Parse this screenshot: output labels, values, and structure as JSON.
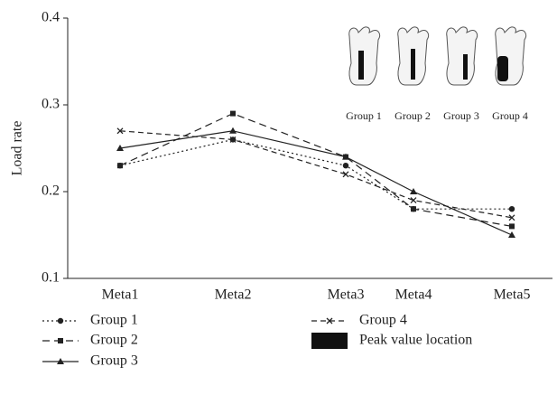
{
  "chart_data": {
    "type": "line",
    "y_label": "Load rate",
    "categories": [
      "Meta1",
      "Meta2",
      "Meta3",
      "Meta4",
      "Meta5"
    ],
    "ylim": [
      0.1,
      0.4
    ],
    "yticks": [
      0.1,
      0.2,
      0.3,
      0.4
    ],
    "series": [
      {
        "name": "Group 1",
        "color": "#222",
        "dash": "2,3",
        "marker": "circle",
        "values": [
          0.23,
          0.26,
          0.23,
          0.18,
          0.18
        ]
      },
      {
        "name": "Group 2",
        "color": "#222",
        "dash": "8,5",
        "marker": "square",
        "values": [
          0.23,
          0.29,
          0.24,
          0.18,
          0.16
        ]
      },
      {
        "name": "Group 3",
        "color": "#222",
        "dash": "none",
        "marker": "triangle",
        "values": [
          0.25,
          0.27,
          0.24,
          0.2,
          0.15
        ]
      },
      {
        "name": "Group 4",
        "color": "#222",
        "dash": "6,4",
        "marker": "x",
        "values": [
          0.27,
          0.26,
          0.22,
          0.19,
          0.17
        ]
      }
    ],
    "peak_legend": "Peak value location",
    "inset_labels": [
      "Group 1",
      "Group 2",
      "Group 3",
      "Group 4"
    ]
  }
}
